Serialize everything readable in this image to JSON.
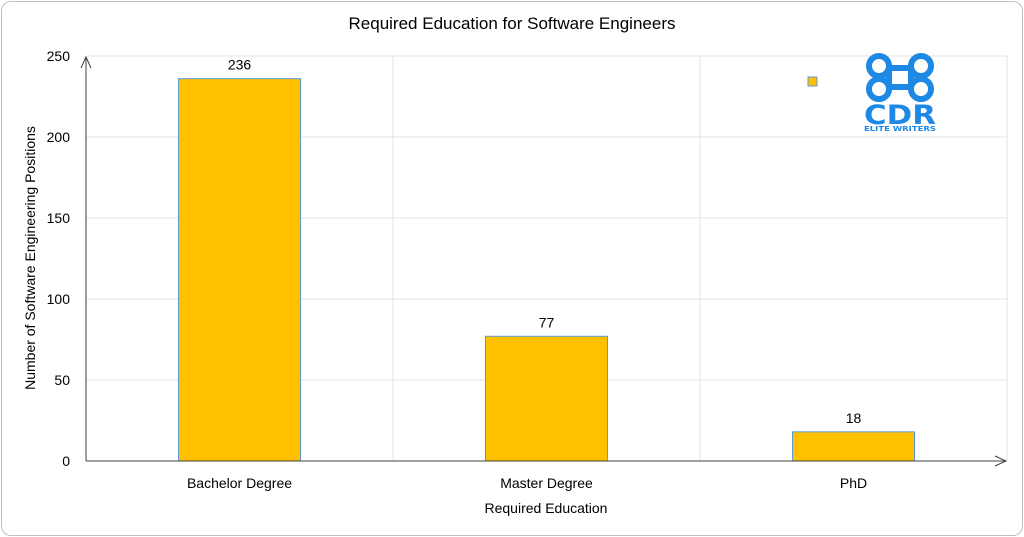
{
  "chart_data": {
    "type": "bar",
    "title": "Required Education for Software Engineers",
    "xlabel": "Required Education",
    "ylabel": "Number of Software Engineering Positions",
    "categories": [
      "Bachelor Degree",
      "Master Degree",
      "PhD"
    ],
    "values": [
      236,
      77,
      18
    ],
    "ylim": [
      0,
      250
    ],
    "yticks": [
      0,
      50,
      100,
      150,
      200,
      250
    ],
    "grid": true,
    "bar_color": "#ffc000",
    "bar_edge_color": "#5b9bd5",
    "legend_placement": "top-right"
  },
  "logo": {
    "brand": "CDR",
    "tagline": "ELITE WRITERS",
    "color": "#1e88e5",
    "icon": "command-key-icon"
  }
}
